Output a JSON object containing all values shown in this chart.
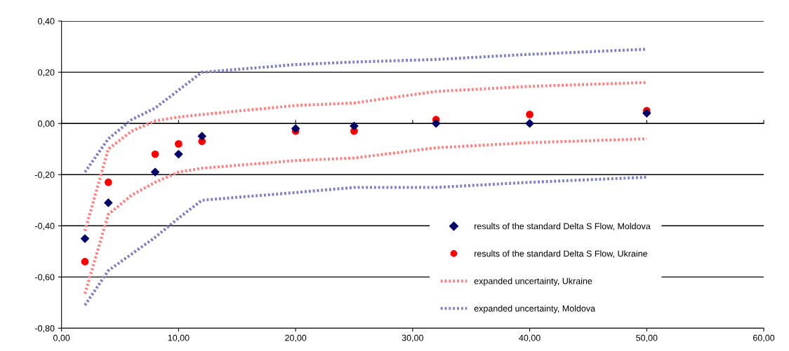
{
  "chart_data": {
    "type": "scatter",
    "xlim": [
      0,
      60
    ],
    "xticks": [
      {
        "value": 0,
        "label": "0,00"
      },
      {
        "value": 10,
        "label": "10,00"
      },
      {
        "value": 20,
        "label": "20,00"
      },
      {
        "value": 30,
        "label": "30,00"
      },
      {
        "value": 40,
        "label": "40,00"
      },
      {
        "value": 50,
        "label": "50,00"
      },
      {
        "value": 60,
        "label": "60,00"
      }
    ],
    "ylim": [
      -0.8,
      0.4
    ],
    "yticks": [
      {
        "value": -0.8,
        "label": "-0,80"
      },
      {
        "value": -0.6,
        "label": "-0,60"
      },
      {
        "value": -0.4,
        "label": "-0,40"
      },
      {
        "value": -0.2,
        "label": "-0,20"
      },
      {
        "value": 0,
        "label": "0,00"
      },
      {
        "value": 0.2,
        "label": "0,20"
      },
      {
        "value": 0.4,
        "label": "0,40"
      }
    ],
    "grid": "y",
    "legend": "bottom right",
    "series": [
      {
        "name": "results of the standard Delta S Flow, Moldova",
        "type": "scatter",
        "marker": "diamond",
        "color": "#000066",
        "x": [
          2,
          4,
          8,
          10,
          12,
          20,
          25,
          32,
          40,
          50
        ],
        "values": [
          -0.45,
          -0.31,
          -0.19,
          -0.12,
          -0.05,
          -0.02,
          -0.01,
          0.0,
          0.0,
          0.04
        ]
      },
      {
        "name": "results of the standard Delta S Flow, Ukraine",
        "type": "scatter",
        "marker": "circle",
        "color": "#ff0000",
        "x": [
          2,
          4,
          8,
          10,
          12,
          20,
          25,
          32,
          40,
          50
        ],
        "values": [
          -0.54,
          -0.23,
          -0.12,
          -0.08,
          -0.07,
          -0.03,
          -0.03,
          0.015,
          0.035,
          0.05
        ]
      },
      {
        "name": "expanded uncertainty, Ukraine",
        "type": "line",
        "line_style": "dotted",
        "color": "#ff8080",
        "x": [
          2,
          4,
          6,
          8,
          10,
          12,
          20,
          25,
          32,
          40,
          50
        ],
        "values": [
          -0.42,
          -0.1,
          -0.03,
          0.01,
          0.025,
          0.035,
          0.07,
          0.08,
          0.125,
          0.145,
          0.16
        ]
      },
      {
        "type": "line",
        "line_style": "dotted",
        "color": "#ff8080",
        "x": [
          2,
          4,
          6,
          8,
          10,
          12,
          20,
          25,
          32,
          40,
          50
        ],
        "values": [
          -0.665,
          -0.355,
          -0.28,
          -0.23,
          -0.19,
          -0.175,
          -0.145,
          -0.135,
          -0.095,
          -0.075,
          -0.06
        ]
      },
      {
        "name": "expanded uncertainty, Moldova",
        "type": "line",
        "line_style": "dotted",
        "color": "#8080c0",
        "x": [
          2,
          4,
          6,
          8,
          10,
          12,
          20,
          25,
          32,
          40,
          50
        ],
        "values": [
          -0.19,
          -0.06,
          0.015,
          0.06,
          0.13,
          0.2,
          0.23,
          0.24,
          0.25,
          0.27,
          0.29
        ]
      },
      {
        "type": "line",
        "line_style": "dotted",
        "color": "#8080c0",
        "x": [
          2,
          4,
          6,
          8,
          10,
          12,
          20,
          25,
          32,
          40,
          50
        ],
        "values": [
          -0.71,
          -0.575,
          -0.51,
          -0.445,
          -0.37,
          -0.3,
          -0.27,
          -0.25,
          -0.25,
          -0.23,
          -0.21
        ]
      }
    ]
  }
}
